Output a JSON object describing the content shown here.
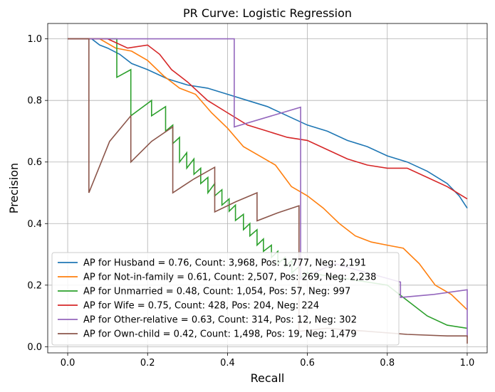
{
  "chart_data": {
    "type": "line",
    "title": "PR Curve: Logistic Regression",
    "xlabel": "Recall",
    "ylabel": "Precision",
    "xlim": [
      -0.05,
      1.05
    ],
    "ylim": [
      -0.02,
      1.05
    ],
    "xticks": [
      0.0,
      0.2,
      0.4,
      0.6,
      0.8,
      1.0
    ],
    "yticks": [
      0.0,
      0.2,
      0.4,
      0.6,
      0.8,
      1.0
    ],
    "xtick_labels": [
      "0.0",
      "0.2",
      "0.4",
      "0.6",
      "0.8",
      "1.0"
    ],
    "ytick_labels": [
      "0.0",
      "0.2",
      "0.4",
      "0.6",
      "0.8",
      "1.0"
    ],
    "grid": true,
    "legend_position": "lower-left",
    "series": [
      {
        "name": "AP for Husband = 0.76, Count: 3,968, Pos: 1,777, Neg: 2,191",
        "color": "#1f77b4",
        "x": [
          0.0,
          0.03,
          0.06,
          0.08,
          0.1,
          0.13,
          0.16,
          0.2,
          0.25,
          0.3,
          0.35,
          0.4,
          0.45,
          0.5,
          0.55,
          0.6,
          0.65,
          0.7,
          0.75,
          0.8,
          0.85,
          0.9,
          0.95,
          0.98,
          1.0
        ],
        "y": [
          1.0,
          1.0,
          1.0,
          0.98,
          0.97,
          0.95,
          0.92,
          0.9,
          0.87,
          0.85,
          0.84,
          0.82,
          0.8,
          0.78,
          0.75,
          0.72,
          0.7,
          0.67,
          0.65,
          0.62,
          0.6,
          0.57,
          0.53,
          0.49,
          0.45
        ]
      },
      {
        "name": "AP for Not-in-family = 0.61, Count: 2,507, Pos: 269, Neg: 2,238",
        "color": "#ff7f0e",
        "x": [
          0.0,
          0.04,
          0.08,
          0.12,
          0.16,
          0.2,
          0.24,
          0.28,
          0.32,
          0.36,
          0.4,
          0.44,
          0.48,
          0.52,
          0.56,
          0.6,
          0.64,
          0.68,
          0.72,
          0.76,
          0.8,
          0.84,
          0.88,
          0.92,
          0.96,
          1.0
        ],
        "y": [
          1.0,
          1.0,
          1.0,
          0.97,
          0.96,
          0.93,
          0.88,
          0.84,
          0.82,
          0.76,
          0.71,
          0.65,
          0.62,
          0.59,
          0.52,
          0.49,
          0.45,
          0.4,
          0.36,
          0.34,
          0.33,
          0.32,
          0.27,
          0.2,
          0.17,
          0.12
        ]
      },
      {
        "name": "AP for Unmarried = 0.48, Count: 1,054, Pos: 57, Neg: 997",
        "color": "#2ca02c",
        "x": [
          0.0,
          0.05,
          0.1,
          0.123,
          0.123,
          0.158,
          0.158,
          0.21,
          0.21,
          0.245,
          0.245,
          0.263,
          0.263,
          0.28,
          0.28,
          0.298,
          0.298,
          0.316,
          0.316,
          0.333,
          0.333,
          0.351,
          0.351,
          0.368,
          0.368,
          0.386,
          0.386,
          0.404,
          0.404,
          0.42,
          0.42,
          0.44,
          0.44,
          0.456,
          0.456,
          0.474,
          0.474,
          0.49,
          0.49,
          0.51,
          0.51,
          0.526,
          0.526,
          0.544,
          0.544,
          0.561,
          0.561,
          0.579,
          0.579,
          0.6,
          0.7,
          0.8,
          0.85,
          0.9,
          0.95,
          1.0
        ],
        "y": [
          1.0,
          1.0,
          1.0,
          1.0,
          0.875,
          0.9,
          0.75,
          0.8,
          0.75,
          0.78,
          0.7,
          0.72,
          0.66,
          0.68,
          0.6,
          0.63,
          0.58,
          0.61,
          0.56,
          0.58,
          0.53,
          0.55,
          0.5,
          0.53,
          0.49,
          0.51,
          0.46,
          0.48,
          0.44,
          0.46,
          0.41,
          0.43,
          0.38,
          0.4,
          0.36,
          0.38,
          0.33,
          0.35,
          0.31,
          0.33,
          0.29,
          0.31,
          0.27,
          0.29,
          0.26,
          0.28,
          0.24,
          0.26,
          0.22,
          0.24,
          0.22,
          0.2,
          0.15,
          0.1,
          0.07,
          0.06
        ]
      },
      {
        "name": "AP for Wife = 0.75, Count: 428, Pos: 204, Neg: 224",
        "color": "#d62728",
        "x": [
          0.0,
          0.05,
          0.1,
          0.15,
          0.2,
          0.23,
          0.26,
          0.3,
          0.35,
          0.4,
          0.45,
          0.5,
          0.55,
          0.6,
          0.65,
          0.7,
          0.75,
          0.8,
          0.85,
          0.9,
          0.95,
          1.0
        ],
        "y": [
          1.0,
          1.0,
          1.0,
          0.97,
          0.98,
          0.95,
          0.9,
          0.86,
          0.8,
          0.76,
          0.72,
          0.7,
          0.68,
          0.67,
          0.64,
          0.61,
          0.59,
          0.58,
          0.58,
          0.55,
          0.52,
          0.48
        ]
      },
      {
        "name": "AP for Other-relative = 0.63, Count: 314, Pos: 12, Neg: 302",
        "color": "#9467bd",
        "x": [
          0.0,
          0.417,
          0.417,
          0.583,
          0.583,
          0.667,
          0.75,
          0.833,
          0.833,
          0.917,
          1.0,
          1.0
        ],
        "y": [
          1.0,
          1.0,
          0.714,
          0.778,
          0.22,
          0.27,
          0.24,
          0.21,
          0.16,
          0.17,
          0.185,
          0.03
        ]
      },
      {
        "name": "AP for Own-child = 0.42, Count: 1,498, Pos: 19, Neg: 1,479",
        "color": "#8c564b",
        "x": [
          0.0,
          0.053,
          0.053,
          0.105,
          0.158,
          0.158,
          0.21,
          0.263,
          0.263,
          0.316,
          0.368,
          0.368,
          0.421,
          0.474,
          0.474,
          0.526,
          0.579,
          0.579,
          0.65,
          0.75,
          0.85,
          0.95,
          1.0,
          1.0
        ],
        "y": [
          1.0,
          1.0,
          0.5,
          0.667,
          0.75,
          0.6,
          0.667,
          0.714,
          0.5,
          0.545,
          0.583,
          0.438,
          0.471,
          0.5,
          0.409,
          0.435,
          0.458,
          0.05,
          0.06,
          0.05,
          0.04,
          0.035,
          0.035,
          0.01
        ]
      }
    ]
  }
}
